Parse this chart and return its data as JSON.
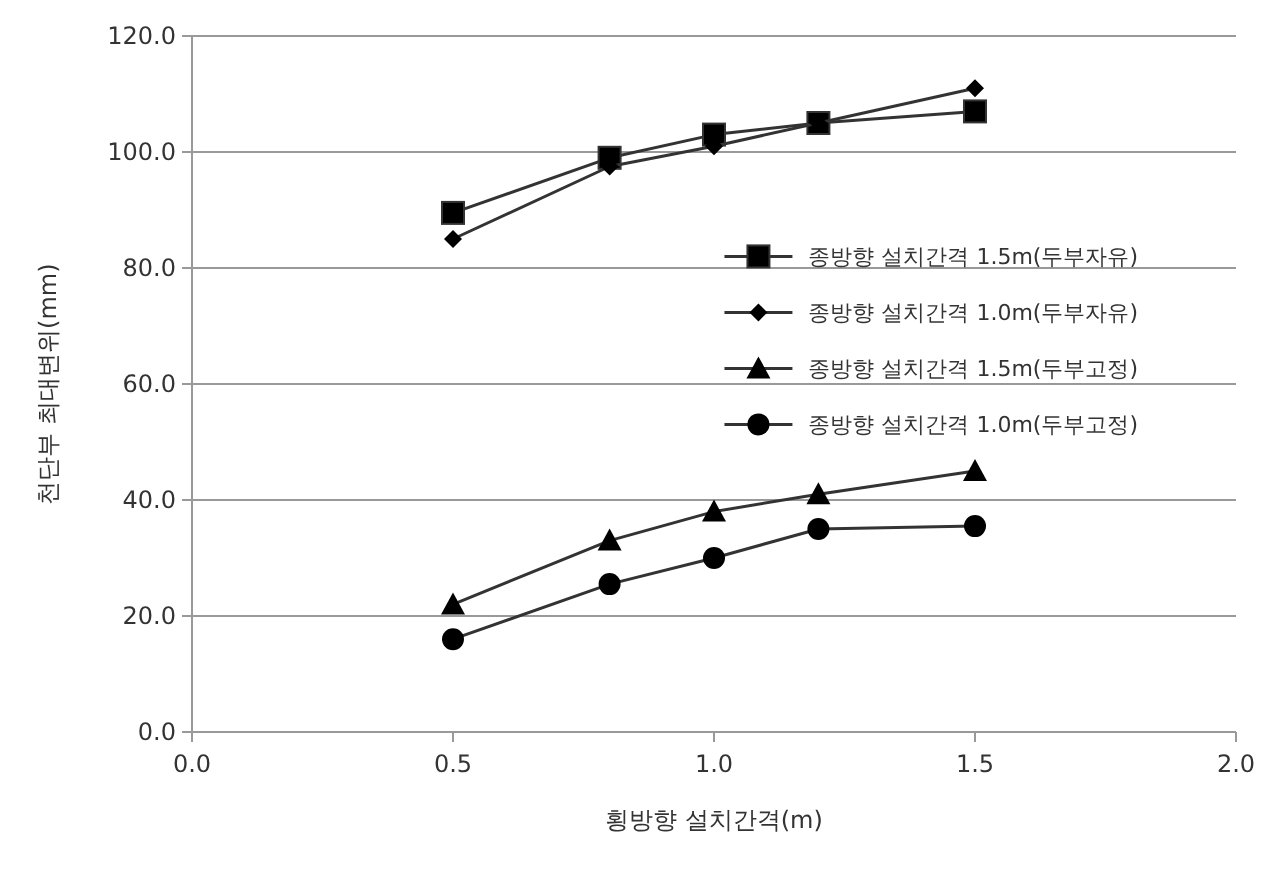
{
  "chart_data": {
    "type": "line",
    "xlabel": "횡방향 설치간격(m)",
    "ylabel": "천단부 최대변위(mm)",
    "xlim": [
      0,
      2
    ],
    "xticks": [
      {
        "value": 0,
        "label": "0.0"
      },
      {
        "value": 0.5,
        "label": "0.5"
      },
      {
        "value": 1,
        "label": "1.0"
      },
      {
        "value": 1.5,
        "label": "1.5"
      },
      {
        "value": 2,
        "label": "2.0"
      }
    ],
    "ylim": [
      0,
      120
    ],
    "yticks": [
      {
        "value": 0,
        "label": "0.0"
      },
      {
        "value": 20,
        "label": "20.0"
      },
      {
        "value": 40,
        "label": "40.0"
      },
      {
        "value": 60,
        "label": "60.0"
      },
      {
        "value": 80,
        "label": "80.0"
      },
      {
        "value": 100,
        "label": "100.0"
      },
      {
        "value": 120,
        "label": "120.0"
      }
    ],
    "grid": "y",
    "legend": "right",
    "series": [
      {
        "name": "종방향 설치간격 1.5m(두부자유)",
        "color": "#333333",
        "marker": "square",
        "x": [
          0.5,
          0.8,
          1.0,
          1.2,
          1.5
        ],
        "values": [
          89.5,
          99,
          103,
          105,
          107
        ]
      },
      {
        "name": "종방향 설치간격 1.0m(두부자유)",
        "color": "#333333",
        "marker": "diamond",
        "x": [
          0.5,
          0.8,
          1.0,
          1.2,
          1.5
        ],
        "values": [
          85,
          97.5,
          101,
          105,
          111
        ]
      },
      {
        "name": "종방향 설치간격 1.5m(두부고정)",
        "color": "#333333",
        "marker": "triangle",
        "x": [
          0.5,
          0.8,
          1.0,
          1.2,
          1.5
        ],
        "values": [
          22,
          33,
          38,
          41,
          45
        ]
      },
      {
        "name": "종방향 설치간격 1.0m(두부고정)",
        "color": "#333333",
        "marker": "circle",
        "x": [
          0.5,
          0.8,
          1.0,
          1.2,
          1.5
        ],
        "values": [
          16,
          25.5,
          30,
          35,
          35.5
        ]
      }
    ]
  }
}
